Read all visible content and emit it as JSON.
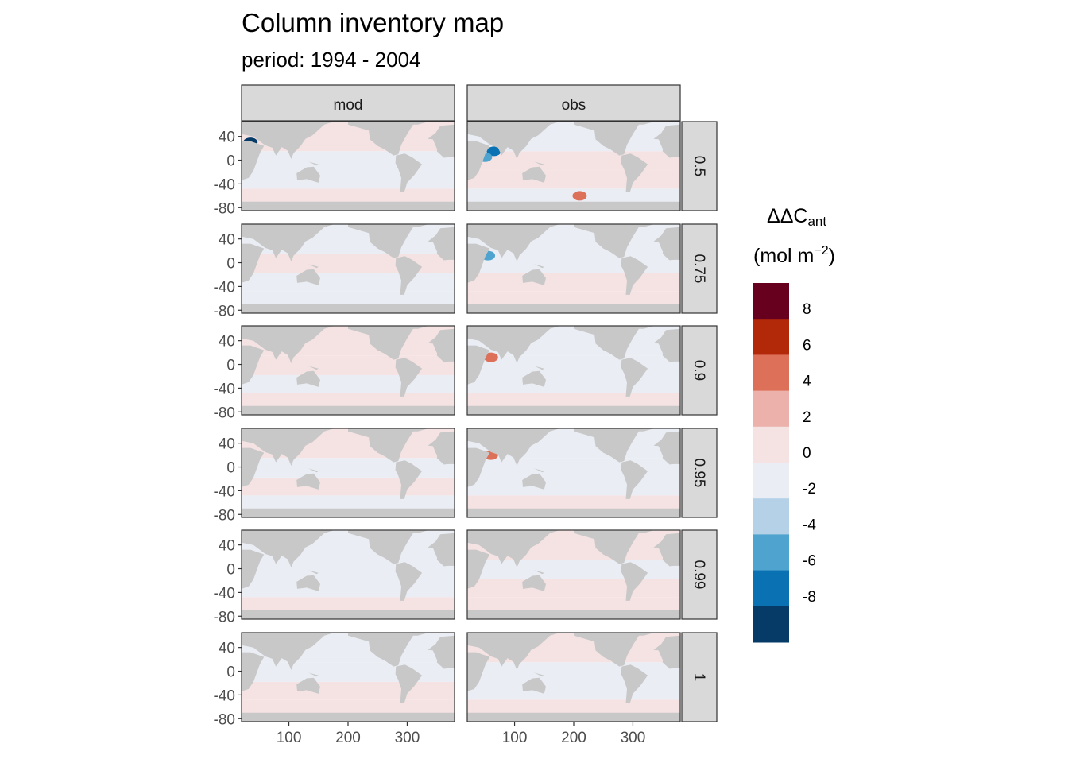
{
  "chart_data": {
    "type": "heatmap",
    "title": "Column inventory map",
    "subtitle": "period: 1994 - 2004",
    "facet_columns": [
      "mod",
      "obs"
    ],
    "facet_rows": [
      "0.5",
      "0.75",
      "0.9",
      "0.95",
      "0.99",
      "1"
    ],
    "x_ticks": [
      "100",
      "200",
      "300"
    ],
    "x_tick_values": [
      100,
      200,
      300
    ],
    "xlim": [
      20,
      380
    ],
    "y_ticks": [
      "40",
      "0",
      "-40",
      "-80"
    ],
    "y_tick_values": [
      40,
      0,
      -40,
      -80
    ],
    "ylim": [
      -85,
      65
    ],
    "land_color": "#c8c8c8",
    "legend": {
      "title_main": "ΔΔC",
      "title_sub": "ant",
      "unit_pre": "(mol m",
      "unit_sup": "−2",
      "unit_post": ")",
      "placement": "right",
      "labels": [
        "8",
        "6",
        "4",
        "2",
        "0",
        "-2",
        "-4",
        "-6",
        "-8"
      ],
      "colors": [
        "#67001f",
        "#b2290a",
        "#dd7059",
        "#ebb1aa",
        "#f5e3e4",
        "#eaeef4",
        "#b4d1e7",
        "#4fa3cf",
        "#0a72b2",
        "#053b66"
      ]
    },
    "panels": [
      {
        "row": "0.5",
        "col": "mod",
        "pattern": [
          "pos",
          "neg",
          "neg",
          "pos"
        ],
        "spots": [
          {
            "x": 35,
            "y": 30,
            "level": -8
          }
        ]
      },
      {
        "row": "0.5",
        "col": "obs",
        "pattern": [
          "neg",
          "pos",
          "pos",
          "neg"
        ],
        "spots": [
          {
            "x": 65,
            "y": 15,
            "level": -6
          },
          {
            "x": 50,
            "y": 5,
            "level": -4
          },
          {
            "x": 210,
            "y": -60,
            "level": 4
          }
        ]
      },
      {
        "row": "0.75",
        "col": "mod",
        "pattern": [
          "neg",
          "pos",
          "neg",
          "neg"
        ],
        "spots": []
      },
      {
        "row": "0.75",
        "col": "obs",
        "pattern": [
          "neg",
          "neg",
          "pos",
          "pos"
        ],
        "spots": [
          {
            "x": 55,
            "y": 12,
            "level": -4
          }
        ]
      },
      {
        "row": "0.9",
        "col": "mod",
        "pattern": [
          "pos",
          "pos",
          "neg",
          "pos"
        ],
        "spots": []
      },
      {
        "row": "0.9",
        "col": "obs",
        "pattern": [
          "neg",
          "neg",
          "neg",
          "pos"
        ],
        "spots": [
          {
            "x": 60,
            "y": 12,
            "level": 4
          }
        ]
      },
      {
        "row": "0.95",
        "col": "mod",
        "pattern": [
          "pos",
          "neg",
          "pos",
          "neg"
        ],
        "spots": []
      },
      {
        "row": "0.95",
        "col": "obs",
        "pattern": [
          "neg",
          "neg",
          "neg",
          "pos"
        ],
        "spots": [
          {
            "x": 60,
            "y": 20,
            "level": 4
          }
        ]
      },
      {
        "row": "0.99",
        "col": "mod",
        "pattern": [
          "neg",
          "neg",
          "neg",
          "pos"
        ],
        "spots": []
      },
      {
        "row": "0.99",
        "col": "obs",
        "pattern": [
          "pos",
          "neg",
          "pos",
          "pos"
        ],
        "spots": []
      },
      {
        "row": "1",
        "col": "mod",
        "pattern": [
          "neg",
          "neg",
          "pos",
          "pos"
        ],
        "spots": []
      },
      {
        "row": "1",
        "col": "obs",
        "pattern": [
          "pos",
          "neg",
          "neg",
          "pos"
        ],
        "spots": []
      }
    ]
  }
}
